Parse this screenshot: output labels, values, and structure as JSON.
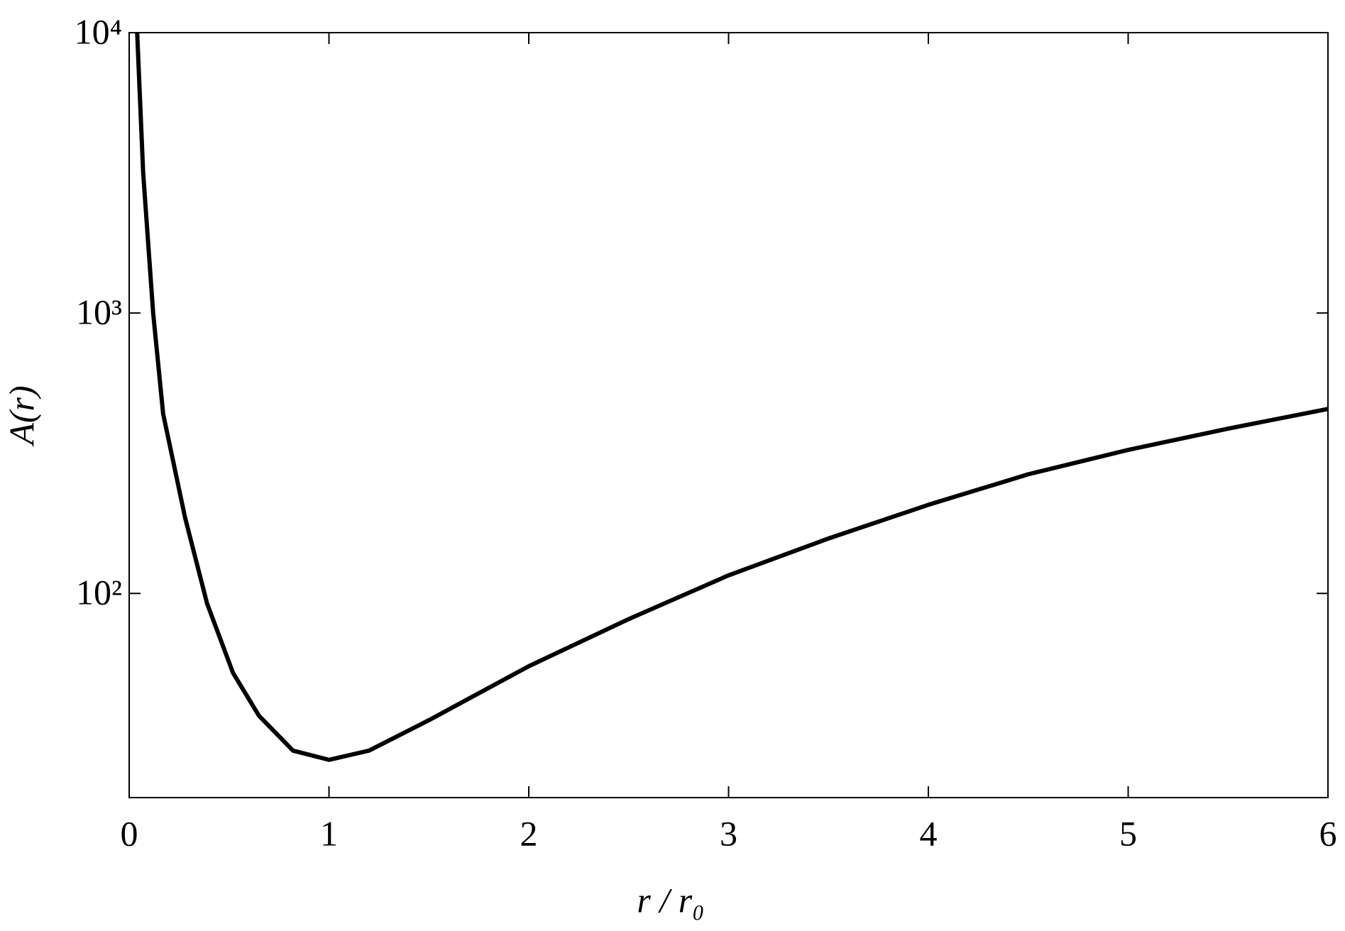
{
  "chart_data": {
    "type": "line",
    "x_label": "r / r₀",
    "y_label": "A(r)",
    "x": [
      0.04,
      0.07,
      0.12,
      0.17,
      0.28,
      0.39,
      0.52,
      0.65,
      0.82,
      1.0,
      1.2,
      1.5,
      2.0,
      2.5,
      3.0,
      3.5,
      4.0,
      4.5,
      5.0,
      5.5,
      6.0
    ],
    "series": [
      {
        "color": "#000000",
        "values": [
          10000,
          3162,
          1000,
          437,
          186,
          92,
          52,
          36.6,
          27.5,
          25.5,
          27.5,
          35.3,
          55,
          81,
          116,
          157,
          207,
          266,
          325,
          387,
          455
        ]
      }
    ],
    "xlim": [
      0,
      6
    ],
    "xticks": [
      0,
      1,
      2,
      3,
      4,
      5,
      6
    ],
    "ylim": [
      18.7,
      10000
    ],
    "y_scale": "log",
    "yticks": [
      {
        "value": 100,
        "label": "10²"
      },
      {
        "value": 1000,
        "label": "10³"
      },
      {
        "value": 10000,
        "label": "10⁴"
      }
    ],
    "grid": false
  }
}
